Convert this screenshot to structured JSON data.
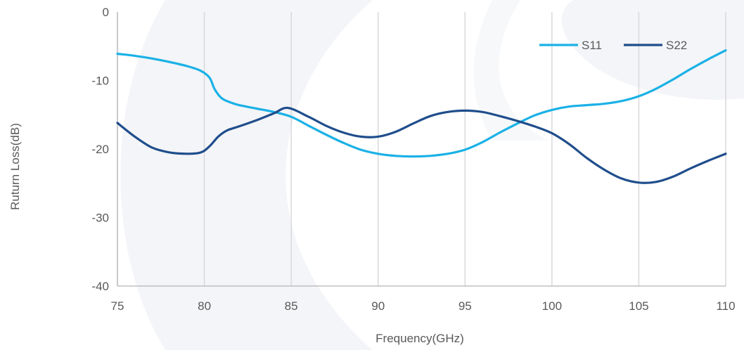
{
  "chart_data": {
    "type": "line",
    "xlabel": "Frequency(GHz)",
    "ylabel": "Ruturn Loss(dB)",
    "xlim": [
      75,
      110
    ],
    "ylim": [
      -40,
      0
    ],
    "xticks": [
      75,
      80,
      85,
      90,
      95,
      100,
      105,
      110
    ],
    "yticks": [
      0,
      -10,
      -20,
      -30,
      -40
    ],
    "grid": "vertical",
    "legend_position": "top-right",
    "series": [
      {
        "name": "S11",
        "color": "#1ab1e6",
        "x": [
          75,
          76,
          77,
          78,
          79,
          79.8,
          80.3,
          80.6,
          81,
          81.5,
          82,
          83,
          84,
          85,
          86,
          87,
          88,
          89,
          90,
          91,
          92,
          93,
          94,
          95,
          96,
          97,
          98,
          99,
          100,
          101,
          102,
          103,
          104,
          105,
          106,
          107,
          108,
          109,
          110
        ],
        "y": [
          -6.1,
          -6.4,
          -6.8,
          -7.3,
          -7.9,
          -8.6,
          -9.6,
          -11.3,
          -12.6,
          -13.2,
          -13.6,
          -14.1,
          -14.6,
          -15.3,
          -16.6,
          -17.9,
          -19.1,
          -20.1,
          -20.7,
          -21.0,
          -21.1,
          -21.0,
          -20.7,
          -20.1,
          -19.0,
          -17.6,
          -16.3,
          -15.1,
          -14.3,
          -13.8,
          -13.6,
          -13.4,
          -13.0,
          -12.3,
          -11.2,
          -9.8,
          -8.3,
          -6.9,
          -5.6
        ]
      },
      {
        "name": "S22",
        "color": "#1f4e8c",
        "x": [
          75,
          76,
          77,
          78,
          79,
          79.8,
          80.3,
          80.8,
          81.3,
          82,
          83,
          84,
          84.8,
          86,
          87,
          88,
          89,
          90,
          91,
          92,
          93,
          94,
          95,
          96,
          97,
          98,
          99,
          100,
          101,
          102,
          103,
          104,
          105,
          106,
          107,
          108,
          109,
          110
        ],
        "y": [
          -16.2,
          -18.2,
          -19.8,
          -20.5,
          -20.7,
          -20.5,
          -19.6,
          -18.2,
          -17.3,
          -16.7,
          -15.8,
          -14.8,
          -14.0,
          -15.3,
          -16.6,
          -17.6,
          -18.2,
          -18.2,
          -17.5,
          -16.3,
          -15.2,
          -14.6,
          -14.4,
          -14.6,
          -15.2,
          -15.9,
          -16.7,
          -17.7,
          -19.3,
          -21.3,
          -23.0,
          -24.3,
          -24.9,
          -24.8,
          -24.0,
          -22.8,
          -21.7,
          -20.7
        ]
      }
    ]
  }
}
